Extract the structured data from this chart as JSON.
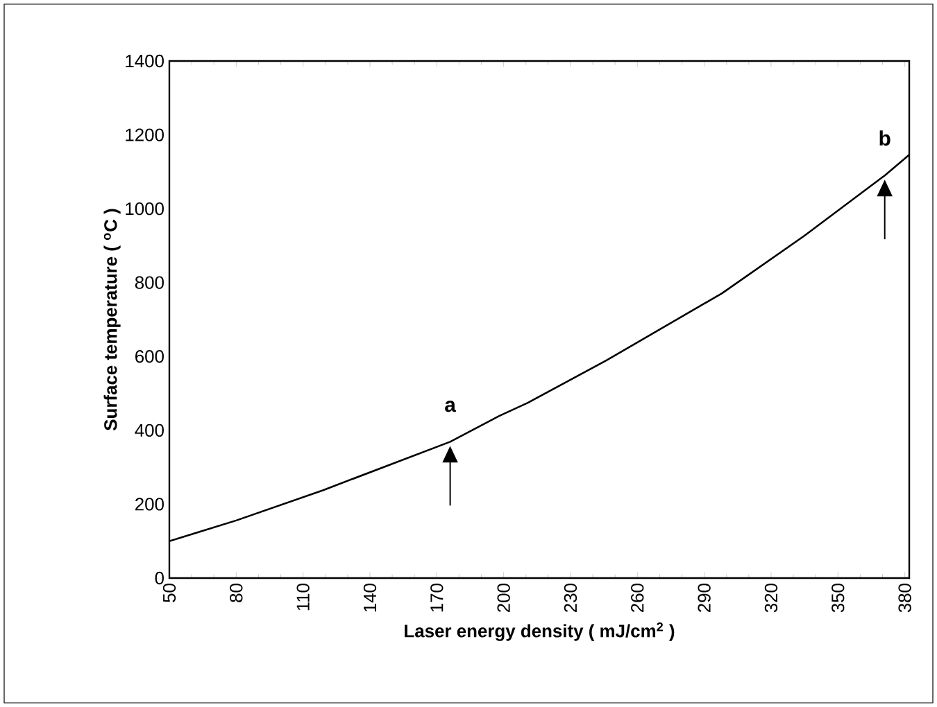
{
  "chart_data": {
    "type": "line",
    "xlabel": "Laser energy density ( mJ/cm$^{2}$ )",
    "ylabel": "Surface temperature ( $^{o}$C )",
    "xlim": [
      50,
      382
    ],
    "xticks": [
      50,
      80,
      110,
      140,
      170,
      200,
      230,
      260,
      290,
      320,
      350,
      380
    ],
    "ylim": [
      0,
      1400
    ],
    "yticks": [
      0,
      200,
      400,
      600,
      800,
      1000,
      1200,
      1400
    ],
    "series": [
      {
        "color": "#000000",
        "x": [
          50,
          80,
          119,
          176,
          198,
          211,
          246,
          298,
          335,
          371,
          382
        ],
        "values": [
          100,
          156,
          238,
          369,
          439,
          475,
          589,
          771,
          927,
          1090,
          1146
        ]
      }
    ],
    "annotations": [
      {
        "text": "a",
        "x": 176,
        "y": 369
      },
      {
        "text": "b",
        "x": 371,
        "y": 1090
      }
    ]
  }
}
